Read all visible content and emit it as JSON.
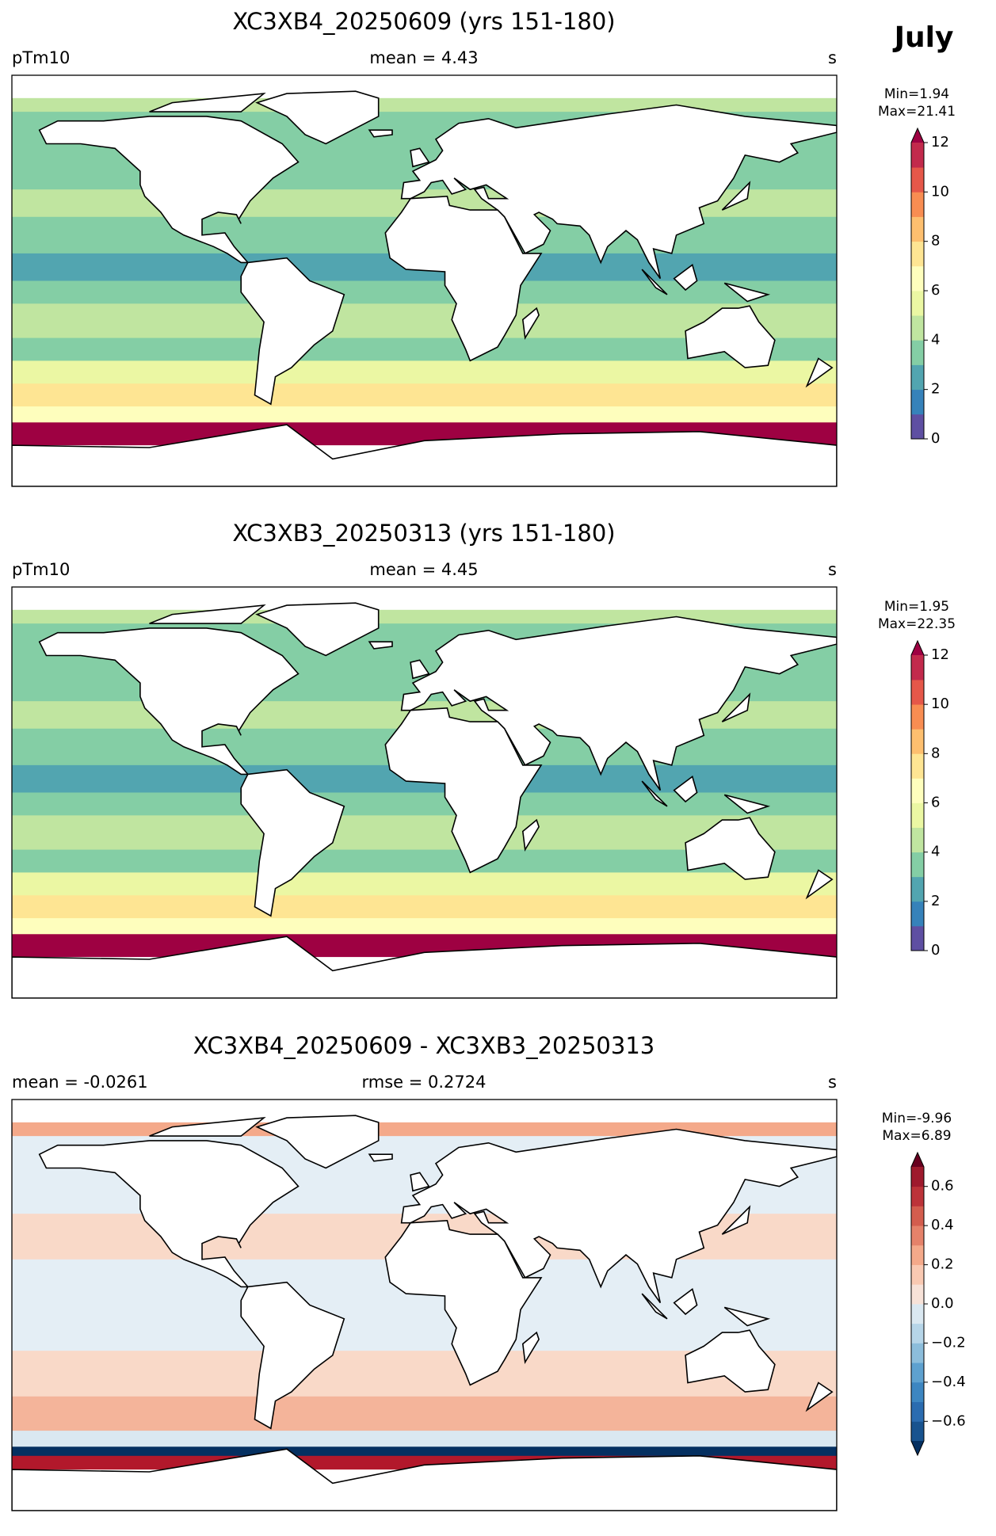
{
  "figure_title": "July",
  "panels": [
    {
      "title": "XC3XB4_20250609 (yrs 151-180)",
      "left_label": "pTm10",
      "center_label": "mean = 4.43",
      "right_label": "s",
      "min_label": "Min=1.94",
      "max_label": "Max=21.41",
      "colorbar": {
        "lim": [
          0,
          12
        ],
        "ticks": [
          0,
          2,
          4,
          6,
          8,
          10,
          12
        ],
        "extend": "max",
        "over_color": "#9e0142",
        "colors": [
          "#5e4fa2",
          "#3682ba",
          "#52a5b0",
          "#84cea5",
          "#c0e5a0",
          "#ebf7a3",
          "#fefebd",
          "#fee593",
          "#fdbf6f",
          "#f88d52",
          "#e55749",
          "#c22a4c"
        ]
      }
    },
    {
      "title": "XC3XB3_20250313 (yrs 151-180)",
      "left_label": "pTm10",
      "center_label": "mean = 4.45",
      "right_label": "s",
      "min_label": "Min=1.95",
      "max_label": "Max=22.35",
      "colorbar": {
        "lim": [
          0,
          12
        ],
        "ticks": [
          0,
          2,
          4,
          6,
          8,
          10,
          12
        ],
        "extend": "max",
        "over_color": "#9e0142",
        "colors": [
          "#5e4fa2",
          "#3682ba",
          "#52a5b0",
          "#84cea5",
          "#c0e5a0",
          "#ebf7a3",
          "#fefebd",
          "#fee593",
          "#fdbf6f",
          "#f88d52",
          "#e55749",
          "#c22a4c"
        ]
      }
    },
    {
      "title": "XC3XB4_20250609 - XC3XB3_20250313",
      "left_label": "mean = -0.0261",
      "center_label": "rmse = 0.2724",
      "right_label": "s",
      "min_label": "Min=-9.96",
      "max_label": "Max=6.89",
      "colorbar": {
        "lim": [
          -0.7,
          0.7
        ],
        "ticks": [
          {
            "value": -0.6,
            "label": "−0.6"
          },
          {
            "value": -0.4,
            "label": "−0.4"
          },
          {
            "value": -0.2,
            "label": "−0.2"
          },
          {
            "value": 0,
            "label": "0.0"
          },
          0.2,
          0.4,
          0.6
        ],
        "extend": "both",
        "under_color": "#053061",
        "over_color": "#67001f",
        "colors": [
          "#18538f",
          "#2b6cb0",
          "#3d86c1",
          "#5ea1cf",
          "#8cbddb",
          "#b6d5e8",
          "#dae8f1",
          "#f7e2d8",
          "#f9c9b2",
          "#f4a98a",
          "#e5826a",
          "#d35d4e",
          "#bc3339",
          "#9e1a2d"
        ]
      }
    }
  ]
}
